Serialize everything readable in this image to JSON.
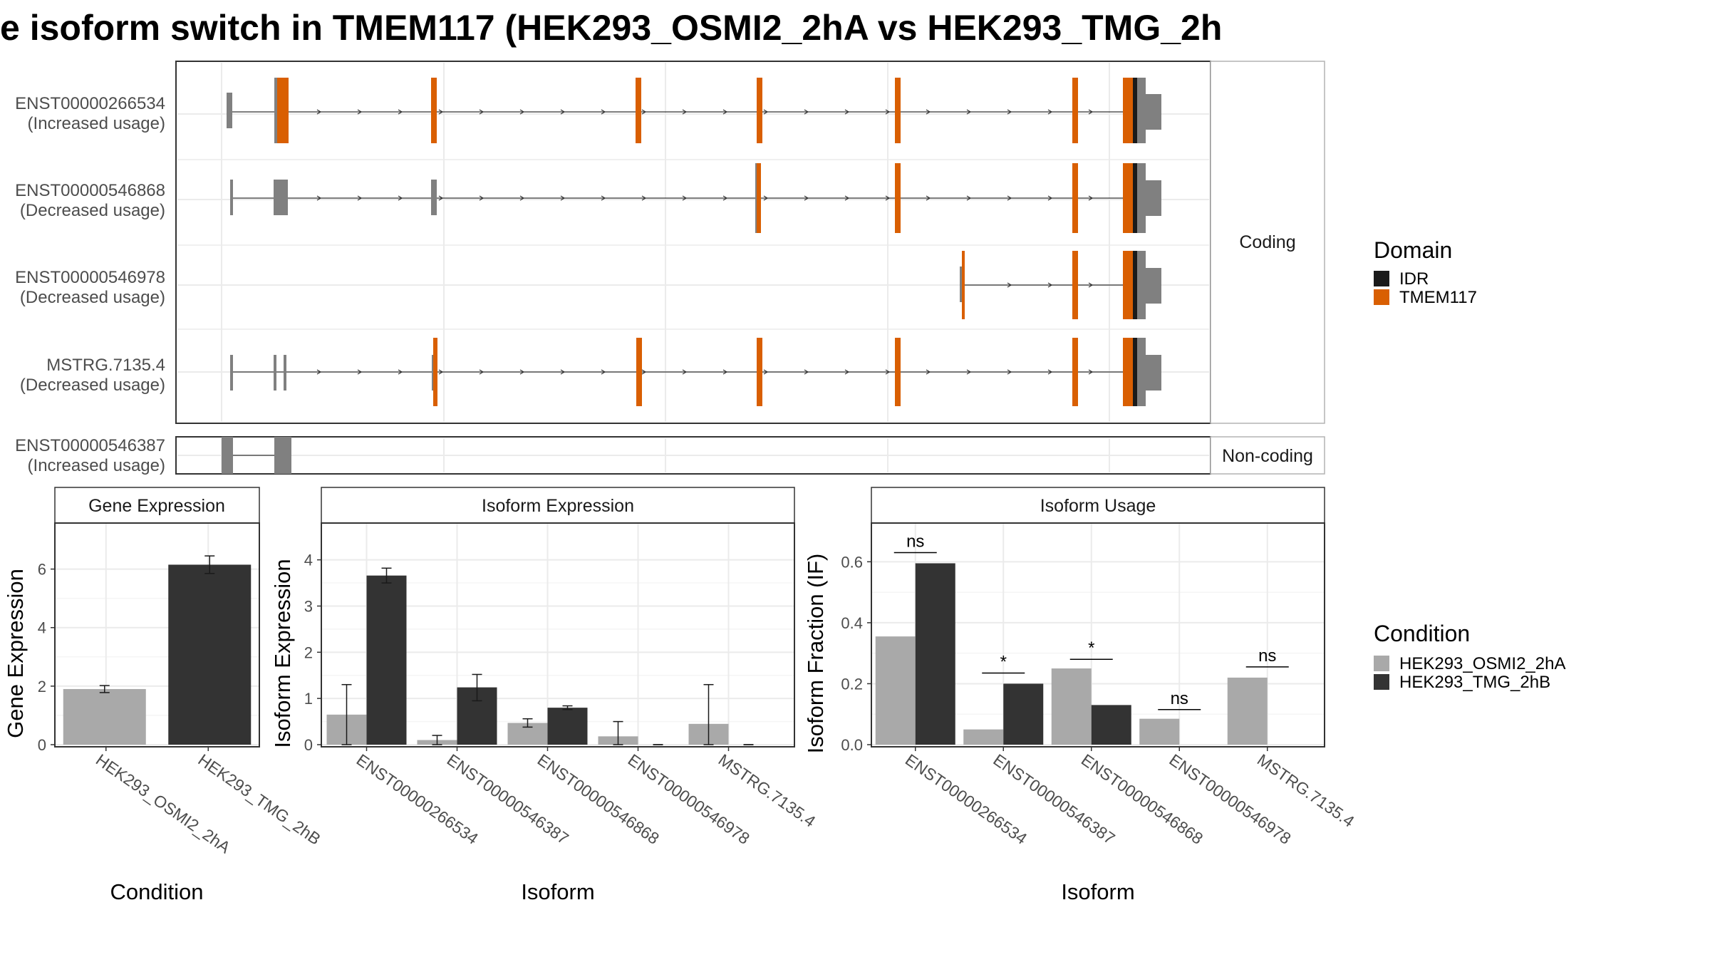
{
  "title": "e isoform switch in TMEM117 (HEK293_OSMI2_2hA vs HEK293_TMG_2h",
  "colors": {
    "idr": "#1a1a1a",
    "tmem117": "#d95f02",
    "exon": "#808080",
    "cond_a": "#a9a9a9",
    "cond_b": "#333333",
    "grid": "#ebebeb",
    "strip": "#ffffff"
  },
  "legends": {
    "domain": {
      "title": "Domain",
      "items": [
        {
          "label": "IDR",
          "color": "#1a1a1a"
        },
        {
          "label": "TMEM117",
          "color": "#d95f02"
        }
      ]
    },
    "condition": {
      "title": "Condition",
      "items": [
        {
          "label": "HEK293_OSMI2_2hA",
          "color": "#a9a9a9"
        },
        {
          "label": "HEK293_TMG_2hB",
          "color": "#333333"
        }
      ]
    }
  },
  "structure": {
    "panels": [
      {
        "strip": "Coding",
        "tracks": [
          {
            "name": "ENST00000266534",
            "usage": "(Increased usage)"
          },
          {
            "name": "ENST00000546868",
            "usage": "(Decreased usage)"
          },
          {
            "name": "ENST00000546978",
            "usage": "(Decreased usage)"
          },
          {
            "name": "MSTRG.7135.4",
            "usage": "(Decreased usage)"
          }
        ]
      },
      {
        "strip": "Non-coding",
        "tracks": [
          {
            "name": "ENST00000546387",
            "usage": "(Increased usage)"
          }
        ]
      }
    ]
  },
  "chart_data": [
    {
      "type": "bar",
      "title": "Gene Expression",
      "xlabel": "Condition",
      "ylabel": "Gene Expression",
      "categories": [
        "HEK293_OSMI2_2hA",
        "HEK293_TMG_2hB"
      ],
      "values": [
        1.9,
        6.15
      ],
      "errors": [
        [
          1.78,
          2.02
        ],
        [
          5.85,
          6.45
        ]
      ],
      "ylim": [
        0,
        7.5
      ],
      "yticks": [
        0,
        2,
        4,
        6
      ],
      "ytick_labels": [
        "0",
        "2",
        "4",
        "6"
      ]
    },
    {
      "type": "bar",
      "title": "Isoform Expression",
      "xlabel": "Isoform",
      "ylabel": "Isoform Expression",
      "categories": [
        "ENST00000266534",
        "ENST00000546387",
        "ENST00000546868",
        "ENST00000546978",
        "MSTRG.7135.4"
      ],
      "series": [
        {
          "name": "HEK293_OSMI2_2hA",
          "values": [
            0.65,
            0.1,
            0.47,
            0.18,
            0.45
          ],
          "errors": [
            [
              0,
              1.3
            ],
            [
              0,
              0.2
            ],
            [
              0.38,
              0.56
            ],
            [
              0,
              0.5
            ],
            [
              0,
              1.3
            ]
          ]
        },
        {
          "name": "HEK293_TMG_2hB",
          "values": [
            3.66,
            1.24,
            0.8,
            0.0,
            0.0
          ],
          "errors": [
            [
              3.5,
              3.82
            ],
            [
              0.95,
              1.52
            ],
            [
              0.76,
              0.84
            ],
            [
              0,
              0
            ],
            [
              0,
              0
            ]
          ]
        }
      ],
      "ylim": [
        0,
        4.75
      ],
      "yticks": [
        0,
        1,
        2,
        3,
        4
      ],
      "ytick_labels": [
        "0",
        "1",
        "2",
        "3",
        "4"
      ]
    },
    {
      "type": "bar",
      "title": "Isoform Usage",
      "xlabel": "Isoform",
      "ylabel": "Isoform Fraction (IF)",
      "categories": [
        "ENST00000266534",
        "ENST00000546387",
        "ENST00000546868",
        "ENST00000546978",
        "MSTRG.7135.4"
      ],
      "series": [
        {
          "name": "HEK293_OSMI2_2hA",
          "values": [
            0.355,
            0.05,
            0.25,
            0.085,
            0.22
          ]
        },
        {
          "name": "HEK293_TMG_2hB",
          "values": [
            0.595,
            0.2,
            0.13,
            0.0,
            0.0
          ]
        }
      ],
      "annotations": [
        {
          "category": 0,
          "label": "ns",
          "y": 0.63
        },
        {
          "category": 1,
          "label": "*",
          "y": 0.235
        },
        {
          "category": 2,
          "label": "*",
          "y": 0.28
        },
        {
          "category": 3,
          "label": "ns",
          "y": 0.115
        },
        {
          "category": 4,
          "label": "ns",
          "y": 0.255
        }
      ],
      "ylim": [
        0,
        0.72
      ],
      "yticks": [
        0,
        0.2,
        0.4,
        0.6
      ],
      "ytick_labels": [
        "0.0",
        "0.2",
        "0.4",
        "0.6"
      ]
    }
  ]
}
